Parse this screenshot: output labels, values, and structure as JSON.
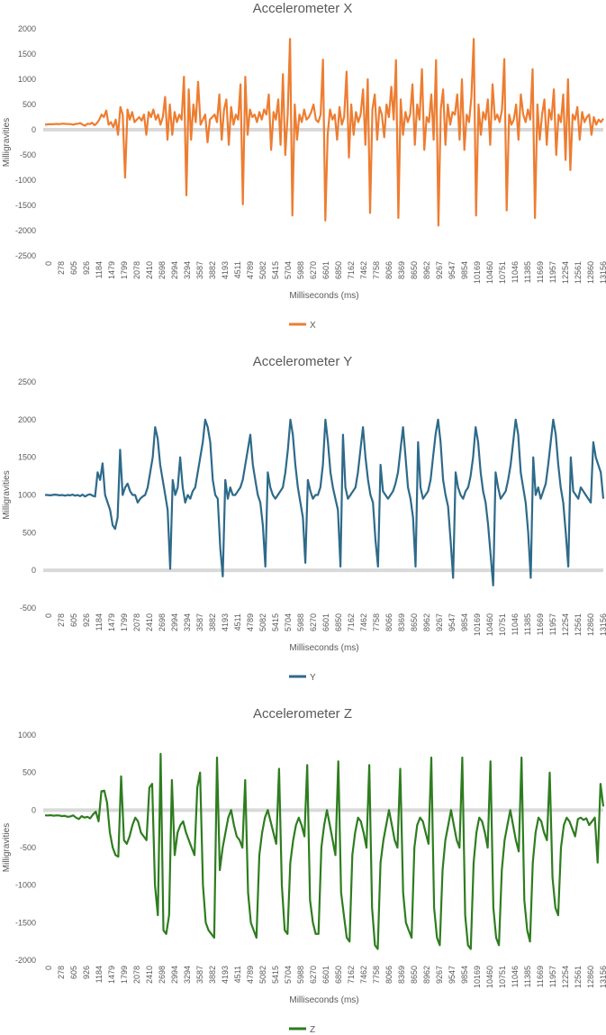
{
  "chart_data": [
    {
      "type": "line",
      "title": "Accelerometer X",
      "xlabel": "Milliseconds (ms)",
      "ylabel": "Milligravities",
      "ylim": [
        -2500,
        2000
      ],
      "yticks": [
        "2000",
        "1500",
        "1000",
        "500",
        "0",
        "-500",
        "-1000",
        "-1500",
        "-2000",
        "-2500"
      ],
      "xticks": [
        "0",
        "278",
        "605",
        "926",
        "1184",
        "1479",
        "1799",
        "2078",
        "2410",
        "2698",
        "2994",
        "3294",
        "3587",
        "3882",
        "4193",
        "4511",
        "4789",
        "5082",
        "5415",
        "5704",
        "5988",
        "6270",
        "6601",
        "6850",
        "7162",
        "7462",
        "7758",
        "8066",
        "8369",
        "8650",
        "8962",
        "9267",
        "9547",
        "9854",
        "10169",
        "10460",
        "10751",
        "11046",
        "11385",
        "11669",
        "11957",
        "12254",
        "12561",
        "12860",
        "13156"
      ],
      "legend": [
        "X"
      ],
      "color": "#ED7D31",
      "series": [
        {
          "name": "X",
          "values": [
            100,
            105,
            110,
            108,
            112,
            115,
            110,
            118,
            120,
            115,
            112,
            110,
            100,
            115,
            120,
            130,
            100,
            80,
            120,
            110,
            140,
            90,
            130,
            200,
            300,
            250,
            380,
            100,
            150,
            50,
            200,
            -100,
            450,
            300,
            -950,
            400,
            200,
            350,
            150,
            200,
            250,
            180,
            300,
            -100,
            350,
            250,
            400,
            200,
            300,
            100,
            250,
            650,
            -200,
            500,
            -100,
            350,
            150,
            300,
            200,
            1050,
            -1300,
            800,
            -200,
            500,
            150,
            950,
            100,
            200,
            300,
            -250,
            200,
            250,
            300,
            150,
            700,
            -200,
            400,
            600,
            -300,
            450,
            100,
            300,
            200,
            900,
            -1480,
            1050,
            -100,
            400,
            250,
            300,
            150,
            350,
            200,
            400,
            300,
            700,
            -400,
            350,
            200,
            600,
            -300,
            1100,
            -500,
            300,
            1800,
            -1700,
            500,
            -200,
            300,
            150,
            400,
            200,
            250,
            350,
            500,
            200,
            150,
            300,
            1390,
            -1800,
            -100,
            400,
            200,
            300,
            -200,
            450,
            100,
            250,
            1150,
            -550,
            500,
            -100,
            350,
            150,
            300,
            800,
            -300,
            1000,
            -1650,
            400,
            700,
            -200,
            450,
            300,
            -150,
            500,
            250,
            850,
            200,
            1380,
            -1750,
            600,
            -100,
            350,
            150,
            300,
            900,
            -300,
            500,
            200,
            1200,
            -400,
            250,
            150,
            700,
            -200,
            1380,
            -1900,
            400,
            800,
            -300,
            500,
            100,
            350,
            300,
            700,
            -200,
            1000,
            -400,
            300,
            150,
            650,
            1800,
            -1700,
            500,
            -100,
            350,
            200,
            600,
            -300,
            900,
            200,
            300,
            150,
            400,
            1400,
            -1600,
            300,
            100,
            200,
            500,
            -200,
            700,
            300,
            150,
            400,
            200,
            1200,
            -1750,
            500,
            -200,
            300,
            600,
            -300,
            400,
            200,
            800,
            -500,
            300,
            150,
            700,
            -600,
            1000,
            -800,
            300,
            200,
            450,
            -200,
            350,
            150,
            250,
            300,
            -100,
            250,
            100,
            200,
            150,
            220
          ]
        }
      ]
    },
    {
      "type": "line",
      "title": "Accelerometer Y",
      "xlabel": "Milliseconds (ms)",
      "ylabel": "Milligravities",
      "ylim": [
        -500,
        2500
      ],
      "yticks": [
        "2500",
        "2000",
        "1500",
        "1000",
        "500",
        "0",
        "-500"
      ],
      "xticks": [
        "0",
        "278",
        "605",
        "926",
        "1184",
        "1479",
        "1799",
        "2078",
        "2410",
        "2698",
        "2994",
        "3294",
        "3587",
        "3882",
        "4193",
        "4511",
        "4789",
        "5082",
        "5415",
        "5704",
        "5988",
        "6270",
        "6601",
        "6850",
        "7162",
        "7462",
        "7758",
        "8066",
        "8369",
        "8650",
        "8962",
        "9267",
        "9547",
        "9854",
        "10169",
        "10460",
        "10751",
        "11046",
        "11385",
        "11669",
        "11957",
        "12254",
        "12561",
        "12860",
        "13156"
      ],
      "legend": [
        "Y"
      ],
      "color": "#2E6A8A",
      "series": [
        {
          "name": "Y",
          "values": [
            1000,
            1000,
            995,
            1000,
            1005,
            1000,
            995,
            1000,
            990,
            1000,
            995,
            1005,
            990,
            1000,
            985,
            1005,
            980,
            1000,
            1010,
            990,
            980,
            1300,
            1200,
            1420,
            1000,
            900,
            800,
            600,
            550,
            700,
            1600,
            1000,
            1100,
            1150,
            1050,
            1000,
            1000,
            900,
            950,
            980,
            1000,
            1100,
            1300,
            1500,
            1900,
            1750,
            1400,
            1200,
            1000,
            800,
            20,
            1200,
            1000,
            1100,
            1500,
            1100,
            900,
            1000,
            950,
            1050,
            1100,
            1300,
            1500,
            1700,
            2000,
            1900,
            1700,
            1200,
            1000,
            950,
            300,
            -80,
            1200,
            950,
            1100,
            1000,
            1000,
            1050,
            1100,
            1200,
            1400,
            1600,
            1800,
            1400,
            1200,
            1000,
            900,
            600,
            50,
            1300,
            1100,
            1000,
            950,
            1000,
            1050,
            1100,
            1300,
            1600,
            2000,
            1800,
            1400,
            1100,
            900,
            700,
            100,
            1200,
            1050,
            950,
            1000,
            1000,
            1100,
            1400,
            2000,
            1700,
            1300,
            1100,
            950,
            800,
            50,
            1800,
            1100,
            950,
            1000,
            1050,
            1100,
            1300,
            1600,
            1900,
            1500,
            1200,
            1000,
            900,
            400,
            50,
            1400,
            1050,
            1000,
            950,
            1000,
            1050,
            1150,
            1300,
            1600,
            1900,
            1500,
            1100,
            950,
            700,
            50,
            1700,
            1100,
            950,
            1000,
            1050,
            1200,
            1500,
            1800,
            2000,
            1700,
            1200,
            1000,
            850,
            400,
            -100,
            1300,
            1100,
            1000,
            950,
            1050,
            1100,
            1250,
            1500,
            1900,
            1700,
            1300,
            1050,
            900,
            600,
            200,
            -200,
            1300,
            1100,
            950,
            1000,
            1050,
            1200,
            1400,
            1700,
            2000,
            1800,
            1300,
            1100,
            900,
            500,
            -100,
            1500,
            1000,
            1100,
            950,
            1050,
            1150,
            1400,
            1700,
            2000,
            1800,
            1400,
            1100,
            900,
            500,
            50,
            1500,
            1050,
            1000,
            950,
            1100,
            1050,
            1000,
            950,
            900,
            1700,
            1500,
            1400,
            1300,
            950
          ]
        }
      ]
    },
    {
      "type": "line",
      "title": "Accelerometer Z",
      "xlabel": "Milliseconds (ms)",
      "ylabel": "Milligravities",
      "ylim": [
        -2000,
        1000
      ],
      "yticks": [
        "1000",
        "500",
        "0",
        "-500",
        "-1000",
        "-1500",
        "-2000"
      ],
      "xticks": [
        "0",
        "278",
        "605",
        "926",
        "1184",
        "1479",
        "1799",
        "2078",
        "2410",
        "2698",
        "2994",
        "3294",
        "3587",
        "3882",
        "4193",
        "4511",
        "4789",
        "5082",
        "5415",
        "5704",
        "5988",
        "6270",
        "6601",
        "6850",
        "7162",
        "7462",
        "7758",
        "8066",
        "8369",
        "8650",
        "8962",
        "9267",
        "9547",
        "9854",
        "10169",
        "10460",
        "10751",
        "11046",
        "11385",
        "11669",
        "11957",
        "12254",
        "12561",
        "12860",
        "13156"
      ],
      "legend": [
        "Z"
      ],
      "color": "#2E7D1F",
      "series": [
        {
          "name": "Z",
          "values": [
            -70,
            -72,
            -68,
            -75,
            -70,
            -72,
            -80,
            -75,
            -90,
            -85,
            -70,
            -100,
            -120,
            -80,
            -100,
            -90,
            -110,
            -60,
            -20,
            -150,
            250,
            260,
            100,
            -300,
            -500,
            -600,
            -620,
            450,
            -400,
            -450,
            -350,
            -200,
            -100,
            -150,
            -300,
            -350,
            -400,
            300,
            350,
            -1000,
            -1400,
            750,
            -1600,
            -1650,
            -1400,
            400,
            -600,
            -300,
            -200,
            -150,
            -300,
            -400,
            -500,
            -600,
            300,
            500,
            -1000,
            -1500,
            -1600,
            -1650,
            -1700,
            700,
            -800,
            -500,
            -300,
            -100,
            0,
            -200,
            -350,
            -400,
            -500,
            400,
            -1100,
            -1500,
            -1600,
            -1700,
            -600,
            -300,
            -100,
            0,
            -150,
            -300,
            -450,
            550,
            -1000,
            -1600,
            -1650,
            -700,
            -400,
            -200,
            -100,
            -200,
            -350,
            600,
            -1200,
            -1500,
            -1650,
            -1650,
            -500,
            -200,
            0,
            -200,
            -400,
            -600,
            650,
            -1100,
            -1400,
            -1700,
            -1750,
            -600,
            -300,
            -100,
            -150,
            -300,
            -500,
            600,
            -1300,
            -1800,
            -1850,
            -700,
            -400,
            -200,
            0,
            -200,
            -400,
            -500,
            550,
            -1100,
            -1500,
            -1600,
            -1700,
            -500,
            -200,
            -100,
            -150,
            -300,
            -450,
            700,
            -1300,
            -1700,
            -1800,
            -800,
            -400,
            -200,
            0,
            -200,
            -400,
            -500,
            700,
            -1400,
            -1800,
            -1850,
            -700,
            -300,
            -100,
            -150,
            -300,
            -500,
            650,
            -1300,
            -1700,
            -1800,
            -800,
            -400,
            -200,
            0,
            -200,
            -400,
            -550,
            700,
            -1200,
            -1600,
            -1750,
            -700,
            -300,
            -100,
            -150,
            -300,
            -400,
            500,
            -900,
            -1300,
            -1400,
            -500,
            -200,
            -100,
            -150,
            -250,
            -350,
            -120,
            -100,
            -130,
            -110,
            -200,
            -150,
            -100,
            -700,
            350,
            50
          ]
        }
      ]
    }
  ]
}
